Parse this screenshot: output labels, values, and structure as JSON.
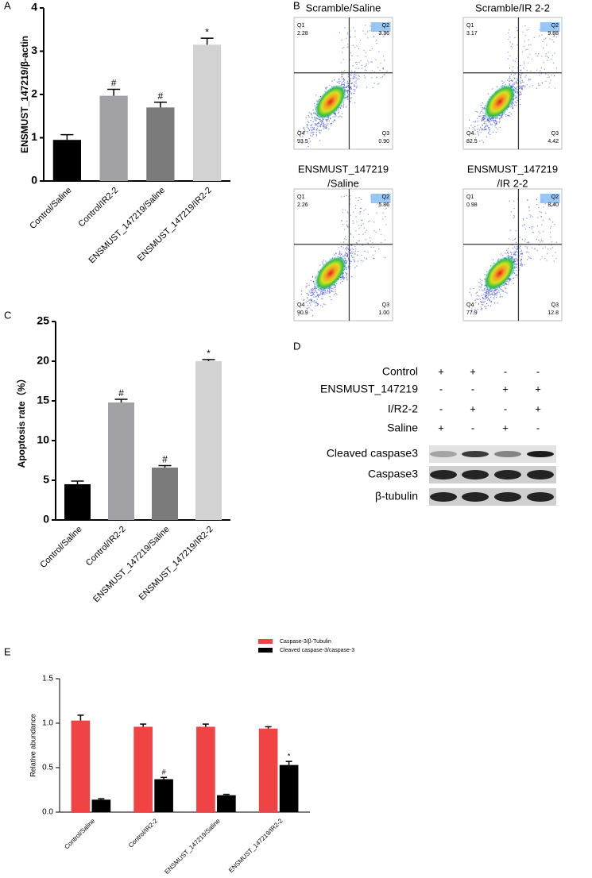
{
  "chart_data": [
    {
      "type": "bar",
      "panel": "A",
      "ylabel": "ENSMUST_147219/β-actin",
      "categories": [
        "Control/Saline",
        "Control/IR2-2",
        "ENSMUST_147219/Saline",
        "ENSMUST_147219/IR2-2"
      ],
      "values": [
        0.95,
        1.97,
        1.7,
        3.15
      ],
      "errors": [
        0.12,
        0.15,
        0.12,
        0.15
      ],
      "colors": [
        "#000000",
        "#a2a2a6",
        "#7b7b7b",
        "#d2d2d2"
      ],
      "annotations": [
        null,
        "#",
        "#",
        "*"
      ],
      "ylim": [
        0,
        4
      ],
      "yticks": [
        0,
        1,
        2,
        3,
        4
      ]
    },
    {
      "type": "bar",
      "panel": "C",
      "ylabel": "Apoptosis rate（%）",
      "categories": [
        "Control/Saline",
        "Control/IR2-2",
        "ENSMUST_147219/Saline",
        "ENSMUST_147219/IR2-2"
      ],
      "values": [
        4.5,
        14.8,
        6.6,
        20.0
      ],
      "errors": [
        0.4,
        0.4,
        0.25,
        0.2
      ],
      "colors": [
        "#000000",
        "#a2a2a6",
        "#7b7b7b",
        "#d2d2d2"
      ],
      "annotations": [
        null,
        "#",
        "#",
        "*"
      ],
      "ylim": [
        0,
        25
      ],
      "yticks": [
        0,
        5,
        10,
        15,
        20,
        25
      ]
    },
    {
      "type": "bar",
      "panel": "E",
      "ylabel": "Relative abundance",
      "categories": [
        "Control/Saline",
        "Control/IR2-2",
        "ENSMUST_147219/Saline",
        "ENSMUST_147219/IR2-2"
      ],
      "series": [
        {
          "name": "Caspase-3/β-Tubulin",
          "color": "#f04444",
          "values": [
            1.03,
            0.96,
            0.96,
            0.94
          ],
          "errors": [
            0.06,
            0.03,
            0.03,
            0.02
          ],
          "annotations": [
            null,
            null,
            null,
            null
          ]
        },
        {
          "name": "Cleaved caspase-3/caspase-3",
          "color": "#000000",
          "values": [
            0.14,
            0.37,
            0.19,
            0.53
          ],
          "errors": [
            0.01,
            0.02,
            0.01,
            0.04
          ],
          "annotations": [
            null,
            "#",
            null,
            "*"
          ]
        }
      ],
      "ylim": [
        0,
        1.5
      ],
      "yticks": [
        {
          "value": 0,
          "label": "0.0"
        },
        0.5,
        {
          "value": 1,
          "label": "1.0"
        },
        1.5
      ]
    }
  ],
  "flow_panel": {
    "panel": "B",
    "plots": [
      {
        "title_lines": [
          "Scramble/Saline"
        ],
        "quadrants": [
          {
            "name": "Q1",
            "value": "2.28"
          },
          {
            "name": "Q2",
            "value": "3.36"
          },
          {
            "name": "Q3",
            "value": "0.90"
          },
          {
            "name": "Q4",
            "value": "93.5"
          }
        ]
      },
      {
        "title_lines": [
          "Scramble/IR 2-2"
        ],
        "quadrants": [
          {
            "name": "Q1",
            "value": "3.17"
          },
          {
            "name": "Q2",
            "value": "9.88"
          },
          {
            "name": "Q3",
            "value": "4.42"
          },
          {
            "name": "Q4",
            "value": "82.5"
          }
        ]
      },
      {
        "title_lines": [
          "ENSMUST_147219",
          "/Saline"
        ],
        "quadrants": [
          {
            "name": "Q1",
            "value": "2.26"
          },
          {
            "name": "Q2",
            "value": "5.86"
          },
          {
            "name": "Q3",
            "value": "1.00"
          },
          {
            "name": "Q4",
            "value": "90.9"
          }
        ]
      },
      {
        "title_lines": [
          "ENSMUST_147219",
          "/IR 2-2"
        ],
        "quadrants": [
          {
            "name": "Q1",
            "value": "0.98"
          },
          {
            "name": "Q2",
            "value": "8.40"
          },
          {
            "name": "Q3",
            "value": "12.8"
          },
          {
            "name": "Q4",
            "value": "77.9"
          }
        ]
      }
    ]
  },
  "western_blot": {
    "panel": "D",
    "conditions": [
      {
        "label": "Control",
        "signs": [
          "+",
          "+",
          "-",
          "-"
        ]
      },
      {
        "label": "ENSMUST_147219",
        "signs": [
          "-",
          "-",
          "+",
          "+"
        ]
      },
      {
        "label": "I/R2-2",
        "signs": [
          "-",
          "+",
          "-",
          "+"
        ]
      },
      {
        "label": "Saline",
        "signs": [
          "+",
          "-",
          "+",
          "-"
        ]
      }
    ],
    "bands": [
      "Cleaved caspase3",
      "Caspase3",
      "β-tubulin"
    ]
  }
}
